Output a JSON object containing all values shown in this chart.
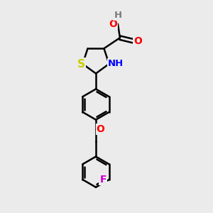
{
  "bg_color": "#ebebeb",
  "atom_colors": {
    "C": "#000000",
    "H": "#7a7a7a",
    "O": "#ff0000",
    "N": "#0000ff",
    "S": "#cccc00",
    "F": "#cc00cc"
  },
  "bond_color": "#000000",
  "bond_width": 1.8,
  "font_size": 9.5,
  "figsize": [
    3.0,
    3.0
  ],
  "dpi": 100
}
